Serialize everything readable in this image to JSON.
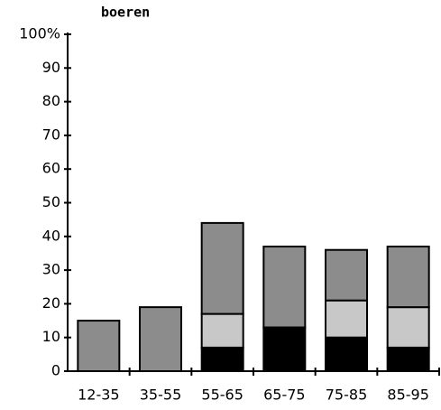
{
  "chart_data": {
    "type": "bar",
    "title": "boeren",
    "categories": [
      "12-35",
      "35-55",
      "55-65",
      "65-75",
      "75-85",
      "85-95"
    ],
    "series": [
      {
        "color": "#000000",
        "values": [
          0,
          0,
          7,
          13,
          10,
          7
        ]
      },
      {
        "color": "#c8c8c8",
        "values": [
          0,
          0,
          10,
          0,
          11,
          12
        ]
      },
      {
        "color": "#8c8c8c",
        "values": [
          15,
          19,
          27,
          24,
          15,
          18
        ]
      }
    ],
    "stacked": true,
    "ylim": [
      0,
      100
    ],
    "yticks": [
      0,
      10,
      20,
      30,
      40,
      50,
      60,
      70,
      80,
      90,
      {
        "value": 100,
        "label": "100%"
      }
    ]
  }
}
